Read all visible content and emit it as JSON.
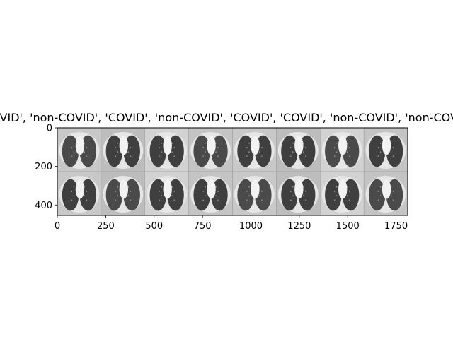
{
  "figure": {
    "title": "['COVID', 'non-COVID', 'COVID', 'non-COVID', 'COVID', 'COVID', 'non-COVID', 'non-COVID']",
    "x_ticks": [
      "0",
      "250",
      "500",
      "750",
      "1000",
      "1250",
      "1500",
      "1750"
    ],
    "y_ticks": [
      "0",
      "200",
      "400"
    ],
    "x_range": [
      0,
      1810
    ],
    "y_range": [
      0,
      454
    ],
    "grid_cols": 8,
    "grid_rows": 2,
    "tile_descriptions": [
      "chest CT axial slice, lungs",
      "chest CT axial slice, lungs",
      "chest CT axial slice, lungs",
      "chest CT axial slice, lungs",
      "chest CT axial slice, lungs",
      "chest CT axial slice, lungs",
      "chest CT axial slice, lungs",
      "chest CT axial slice, lungs",
      "chest CT axial slice, lungs",
      "chest CT axial slice, lungs",
      "chest CT axial slice, lungs",
      "chest CT axial slice, lungs",
      "chest CT axial slice, lungs",
      "chest CT axial slice, lungs",
      "chest CT axial slice, lungs",
      "chest CT axial slice, lungs"
    ]
  }
}
